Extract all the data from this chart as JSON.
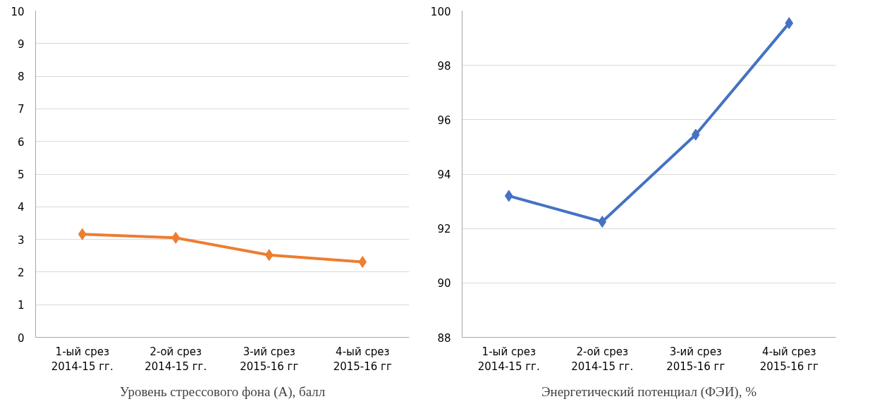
{
  "chart_data": [
    {
      "type": "line",
      "title": "Уровень стрессового фона (А), балл",
      "categories": [
        "1-ый срез\n2014-15 гг.",
        "2-ой срез\n2014-15 гг.",
        "3-ий срез\n2015-16 гг",
        "4-ый срез\n2015-16 гг"
      ],
      "series": [
        {
          "color": "#ed7d31",
          "values": [
            3.16,
            3.05,
            2.52,
            2.31
          ]
        }
      ],
      "ylim": [
        0,
        10
      ],
      "yticks": [
        0,
        1,
        2,
        3,
        4,
        5,
        6,
        7,
        8,
        9,
        10
      ],
      "grid": "y",
      "marker": "diamond",
      "line_style": "solid"
    },
    {
      "type": "line",
      "title": "Энергетический потенциал (ФЭИ), %",
      "categories": [
        "1-ый срез\n2014-15 гг.",
        "2-ой срез\n2014-15 гг.",
        "3-ий срез\n2015-16 гг",
        "4-ый срез\n2015-16 гг"
      ],
      "series": [
        {
          "color": "#4472c4",
          "values": [
            93.2,
            92.25,
            95.45,
            99.55
          ]
        }
      ],
      "ylim": [
        88,
        100
      ],
      "yticks": [
        88,
        90,
        92,
        94,
        96,
        98,
        100
      ],
      "grid": "y",
      "marker": "diamond",
      "line_style": "solid"
    }
  ]
}
